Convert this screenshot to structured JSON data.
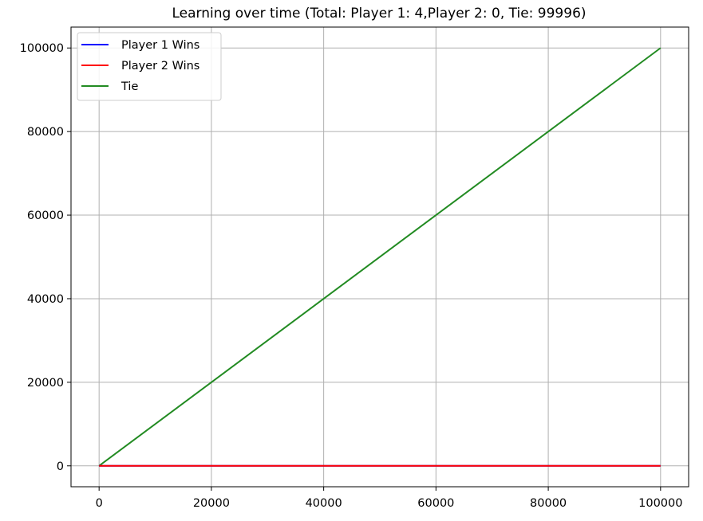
{
  "chart_data": {
    "type": "line",
    "title": "Learning over time (Total: Player 1: 4,Player 2: 0, Tie: 99996)",
    "xlabel": "",
    "ylabel": "",
    "xlim": [
      -5000,
      105000
    ],
    "ylim": [
      -5000,
      105000
    ],
    "xticks": [
      0,
      20000,
      40000,
      60000,
      80000,
      100000
    ],
    "yticks": [
      0,
      20000,
      40000,
      60000,
      80000,
      100000
    ],
    "grid": true,
    "legend_position": "top-left",
    "series": [
      {
        "name": "Player 1 Wins",
        "color": "#0000ff",
        "x": [
          0,
          100000
        ],
        "y": [
          0,
          4
        ]
      },
      {
        "name": "Player 2 Wins",
        "color": "#ff0000",
        "x": [
          0,
          100000
        ],
        "y": [
          0,
          0
        ]
      },
      {
        "name": "Tie",
        "color": "#228b22",
        "x": [
          0,
          100000
        ],
        "y": [
          0,
          99996
        ]
      }
    ]
  }
}
